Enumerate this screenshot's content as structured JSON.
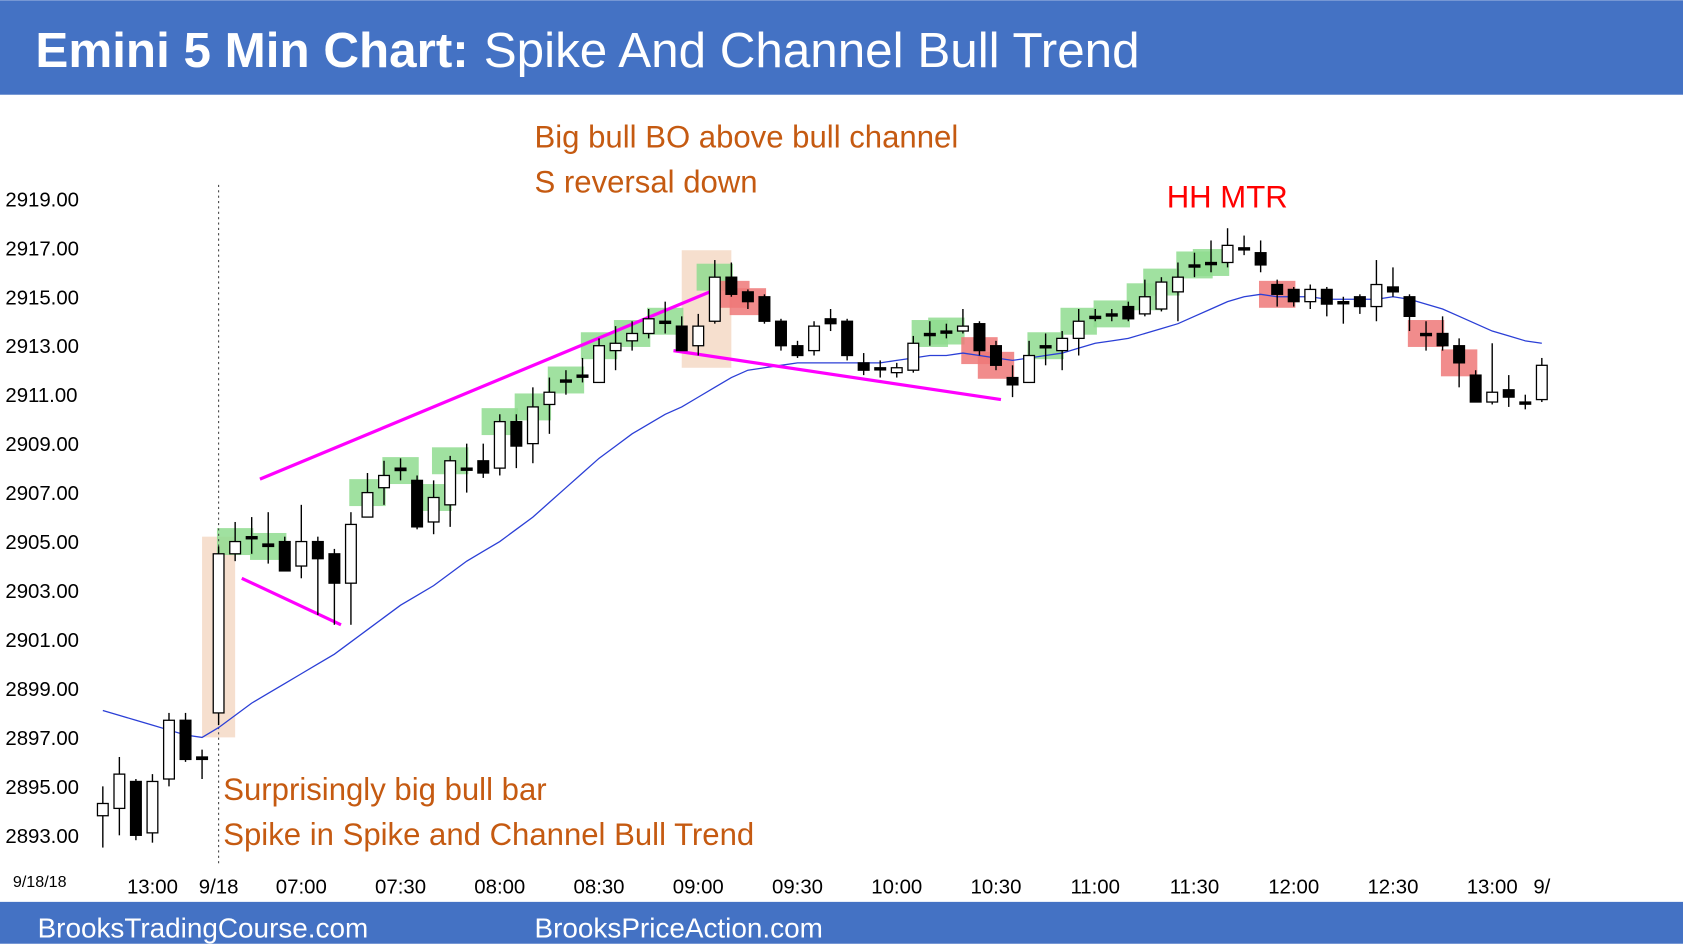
{
  "chart_data": {
    "type": "candlestick",
    "title_bold": "Emini 5 Min Chart:",
    "title": "Spike And Channel Bull Trend",
    "date_label": "9/18/18",
    "footer": [
      "BrooksTradingCourse.com",
      "BrooksPriceAction.com"
    ],
    "annotations": [
      {
        "text": "Big bull BO above bull channel",
        "color": "#c55a11"
      },
      {
        "text": "S reversal down",
        "color": "#c55a11"
      },
      {
        "text": "HH MTR",
        "color": "#ff0000"
      },
      {
        "text": "Surprisingly big bull bar",
        "color": "#c55a11"
      },
      {
        "text": "Spike in Spike and Channel Bull Trend",
        "color": "#c55a11"
      }
    ],
    "categories": [
      null,
      null,
      null,
      "13:00",
      null,
      null,
      null,
      "9/18",
      null,
      null,
      null,
      null,
      "07:00",
      null,
      null,
      null,
      null,
      null,
      "07:30",
      null,
      null,
      null,
      null,
      null,
      "08:00",
      null,
      null,
      null,
      null,
      null,
      "08:30",
      null,
      null,
      null,
      null,
      null,
      "09:00",
      null,
      null,
      null,
      null,
      null,
      "09:30",
      null,
      null,
      null,
      null,
      null,
      "10:00",
      null,
      null,
      null,
      null,
      null,
      "10:30",
      null,
      null,
      null,
      null,
      null,
      "11:00",
      null,
      null,
      null,
      null,
      null,
      "11:30",
      null,
      null,
      null,
      null,
      null,
      "12:00",
      null,
      null,
      null,
      null,
      null,
      "12:30",
      null,
      null,
      null,
      null,
      null,
      "13:00",
      null,
      null,
      "9/"
    ],
    "open": [
      2893.8,
      2894.1,
      2895.2,
      2893.1,
      2895.3,
      2897.7,
      2896.2,
      2898,
      2904.5,
      2905.2,
      2904.9,
      2905,
      2904,
      2905,
      2904.5,
      2903.3,
      2906,
      2907.2,
      2908,
      2907.5,
      2905.8,
      2906.5,
      2908,
      2908.3,
      2908,
      2909.9,
      2909,
      2910.6,
      2911.6,
      2911.8,
      2911.5,
      2912.8,
      2913.2,
      2913.5,
      2914,
      2913.8,
      2913,
      2914,
      2915.8,
      2915.2,
      2915,
      2914,
      2913,
      2912.8,
      2914.1,
      2914,
      2912.3,
      2912.1,
      2911.9,
      2912,
      2913.5,
      2913.6,
      2913.6,
      2913.9,
      2913,
      2911.7,
      2911.5,
      2913,
      2912.8,
      2913.3,
      2914.2,
      2914.3,
      2914.6,
      2914.3,
      2914.5,
      2915.2,
      2916.3,
      2916.4,
      2916.4,
      2917,
      2916.8,
      2915.5,
      2915.3,
      2914.8,
      2915.3,
      2914.8,
      2915,
      2914.6,
      2915.4,
      2915,
      2913.5,
      2913.5,
      2913,
      2911.8,
      2910.7,
      2911.2,
      2910.7,
      2910.8
    ],
    "high": [
      2895,
      2896.2,
      2895.3,
      2895.5,
      2898,
      2898,
      2896.5,
      2904.8,
      2905.8,
      2906,
      2906.2,
      2905.2,
      2906.5,
      2905.2,
      2904.7,
      2906.2,
      2907.8,
      2908.3,
      2908.4,
      2907.7,
      2907.5,
      2908.5,
      2909,
      2909,
      2910.2,
      2910.2,
      2911.3,
      2911.7,
      2912,
      2912.5,
      2913.3,
      2913.8,
      2914,
      2914.5,
      2914.8,
      2914.2,
      2914.3,
      2916.5,
      2916.4,
      2915.3,
      2915.1,
      2914.1,
      2913.2,
      2914,
      2914.5,
      2914.1,
      2912.7,
      2912.4,
      2912.3,
      2913.4,
      2914,
      2913.9,
      2914.5,
      2914,
      2913.2,
      2912.2,
      2913.2,
      2913.5,
      2913.6,
      2914.5,
      2914.5,
      2914.5,
      2914.8,
      2915.7,
      2915.8,
      2916.4,
      2916.8,
      2917.3,
      2917.8,
      2917.5,
      2917.3,
      2915.7,
      2915.4,
      2915.5,
      2915.4,
      2915,
      2915.1,
      2916.5,
      2916.2,
      2915.1,
      2914,
      2914.2,
      2913.3,
      2912,
      2913.1,
      2911.8,
      2911,
      2912.5
    ],
    "low": [
      2892.5,
      2893,
      2892.8,
      2892.7,
      2895,
      2896,
      2895.3,
      2897.5,
      2904.2,
      2904.5,
      2904.1,
      2903.8,
      2903.5,
      2902,
      2901.6,
      2901.6,
      2906,
      2906.5,
      2907.5,
      2905.5,
      2905.3,
      2905.6,
      2907,
      2907.6,
      2907.7,
      2908,
      2908.2,
      2909.4,
      2911,
      2911.5,
      2911.5,
      2912,
      2912.8,
      2913.3,
      2913.5,
      2912.8,
      2912.6,
      2913.9,
      2915,
      2914.5,
      2913.9,
      2912.8,
      2912.5,
      2912.6,
      2913.6,
      2912.4,
      2911.8,
      2911.7,
      2911.7,
      2911.9,
      2913,
      2913.3,
      2913.5,
      2912.6,
      2912,
      2910.9,
      2911.5,
      2912.2,
      2912,
      2912.6,
      2914,
      2914,
      2914,
      2914.2,
      2914.4,
      2914,
      2915.8,
      2916,
      2916.2,
      2916.7,
      2916,
      2914.6,
      2914.6,
      2914.5,
      2914.2,
      2913.9,
      2914.3,
      2914,
      2915,
      2913.6,
      2912.8,
      2912.8,
      2911.3,
      2910.7,
      2910.6,
      2910.5,
      2910.4,
      2910.7
    ],
    "close": [
      2894.3,
      2895.5,
      2893.0,
      2895.2,
      2897.7,
      2896.1,
      2896.1,
      2904.5,
      2905,
      2905.2,
      2904.8,
      2903.8,
      2905,
      2904.3,
      2903.3,
      2905.7,
      2907,
      2907.7,
      2907.9,
      2905.6,
      2906.8,
      2908.3,
      2908,
      2907.8,
      2909.9,
      2908.9,
      2910.5,
      2911.1,
      2911.6,
      2911.8,
      2913,
      2913.1,
      2913.5,
      2914.1,
      2914,
      2912.8,
      2913.8,
      2915.8,
      2915.1,
      2914.8,
      2914,
      2913,
      2912.6,
      2913.8,
      2913.9,
      2912.6,
      2912,
      2912.1,
      2912.1,
      2913.1,
      2913.5,
      2913.6,
      2913.8,
      2912.8,
      2912.2,
      2911.4,
      2912.6,
      2913,
      2913.3,
      2914,
      2914.2,
      2914.3,
      2914.1,
      2915,
      2915.6,
      2915.8,
      2916.3,
      2916.4,
      2917.1,
      2917,
      2916.3,
      2915.1,
      2914.8,
      2915.3,
      2914.7,
      2914.8,
      2914.6,
      2915.5,
      2915.2,
      2914.2,
      2913.5,
      2913,
      2912.3,
      2910.7,
      2911.1,
      2910.9,
      2910.7,
      2912.2
    ],
    "ema": {
      "color": "#2b3fd6",
      "values": [
        2898.1,
        2897.9,
        2897.7,
        2897.5,
        2897.3,
        2897.1,
        2897.0,
        2897.4,
        2897.9,
        2898.4,
        2898.8,
        2899.2,
        2899.6,
        2900.0,
        2900.4,
        2900.9,
        2901.4,
        2901.9,
        2902.4,
        2902.8,
        2903.2,
        2903.7,
        2904.2,
        2904.6,
        2905.0,
        2905.5,
        2906.0,
        2906.6,
        2907.2,
        2907.8,
        2908.4,
        2908.9,
        2909.4,
        2909.8,
        2910.2,
        2910.5,
        2910.9,
        2911.3,
        2911.7,
        2912.0,
        2912.1,
        2912.2,
        2912.3,
        2912.3,
        2912.3,
        2912.3,
        2912.3,
        2912.3,
        2912.4,
        2912.5,
        2912.6,
        2912.6,
        2912.7,
        2912.6,
        2912.5,
        2912.4,
        2912.5,
        2912.6,
        2912.7,
        2912.9,
        2913.1,
        2913.2,
        2913.3,
        2913.5,
        2913.7,
        2913.9,
        2914.2,
        2914.5,
        2914.8,
        2915.0,
        2915.1,
        2915.0,
        2915.0,
        2915.0,
        2914.9,
        2914.9,
        2914.9,
        2914.9,
        2915.0,
        2914.9,
        2914.7,
        2914.5,
        2914.2,
        2913.9,
        2913.6,
        2913.4,
        2913.2,
        2913.1
      ]
    },
    "green_boxes": [
      8,
      10,
      16,
      18,
      20,
      21,
      24,
      26,
      28,
      30,
      32,
      34,
      37,
      50,
      51,
      57,
      59,
      61,
      63,
      64,
      66,
      67
    ],
    "red_boxes": [
      38,
      39,
      53,
      54,
      71,
      80,
      82
    ],
    "tan_boxes": [
      {
        "bars": [
          7,
          7
        ],
        "range": [
          2897,
          2905.2
        ]
      },
      {
        "bars": [
          36,
          37
        ],
        "range": [
          2912.1,
          2916.9
        ]
      }
    ],
    "trendlines": [
      {
        "color": "#ff00ff",
        "points": [
          [
            9.5,
            2907.55
          ],
          [
            36.7,
            2915.2
          ]
        ]
      },
      {
        "color": "#ff00ff",
        "points": [
          [
            8.4,
            2903.5
          ],
          [
            14.4,
            2901.6
          ]
        ]
      },
      {
        "color": "#ff00ff",
        "points": [
          [
            34.5,
            2912.8
          ],
          [
            54.3,
            2910.8
          ]
        ]
      }
    ],
    "day_break": 7,
    "ylim": [
      2892,
      2920
    ],
    "yticks": [
      {
        "value": 2893,
        "label": "2893.00"
      },
      {
        "value": 2895,
        "label": "2895.00"
      },
      {
        "value": 2897,
        "label": "2897.00"
      },
      {
        "value": 2899,
        "label": "2899.00"
      },
      {
        "value": 2901,
        "label": "2901.00"
      },
      {
        "value": 2903,
        "label": "2903.00"
      },
      {
        "value": 2905,
        "label": "2905.00"
      },
      {
        "value": 2907,
        "label": "2907.00"
      },
      {
        "value": 2909,
        "label": "2909.00"
      },
      {
        "value": 2911,
        "label": "2911.00"
      },
      {
        "value": 2913,
        "label": "2913.00"
      },
      {
        "value": 2915,
        "label": "2915.00"
      },
      {
        "value": 2917,
        "label": "2917.00"
      },
      {
        "value": 2919,
        "label": "2919.00"
      }
    ]
  }
}
